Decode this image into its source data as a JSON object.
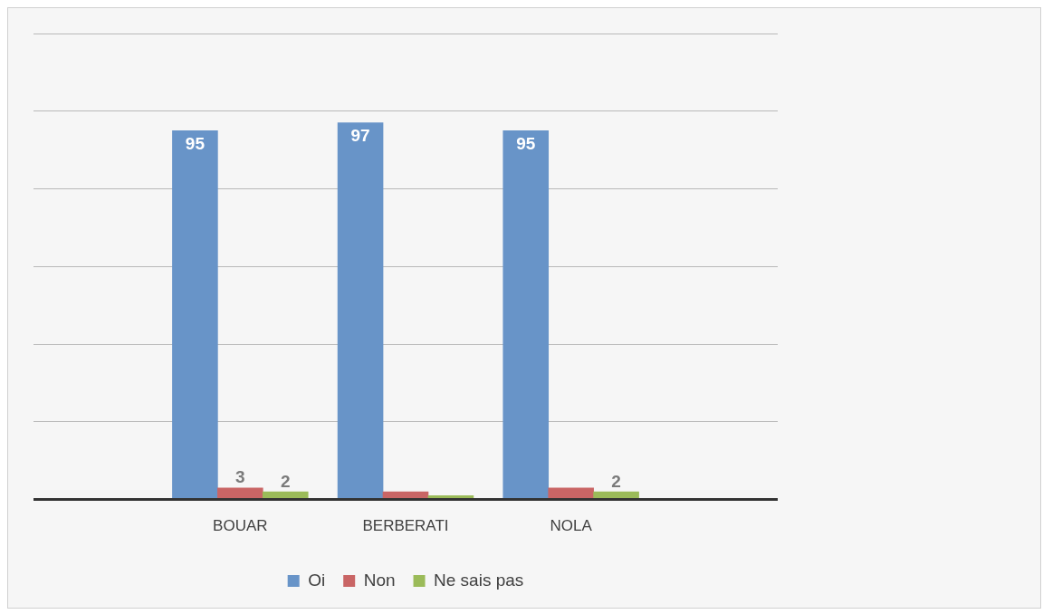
{
  "chart_data": {
    "type": "bar",
    "categories": [
      "BOUAR",
      "BERBERATI",
      "NOLA"
    ],
    "series": [
      {
        "name": "Oi",
        "color": "#6894c8",
        "values": [
          95,
          97,
          95
        ],
        "value_labels": [
          "95",
          "97",
          "95"
        ]
      },
      {
        "name": "Non",
        "color": "#c96565",
        "values": [
          3,
          2,
          3
        ],
        "value_labels": [
          "3",
          null,
          null
        ]
      },
      {
        "name": "Ne sais pas",
        "color": "#9bbb59",
        "values": [
          2,
          1,
          2
        ],
        "value_labels": [
          "2",
          null,
          "2"
        ]
      }
    ],
    "ylim": [
      0,
      120
    ],
    "yticks": [
      {
        "value": 0,
        "label": null
      },
      {
        "value": 20,
        "label": null
      },
      {
        "value": 40,
        "label": null
      },
      {
        "value": 60,
        "label": null
      },
      {
        "value": 80,
        "label": null
      },
      {
        "value": 100,
        "label": null
      },
      {
        "value": 120,
        "label": null
      }
    ],
    "tick_labels": "x",
    "grid": "y",
    "legend": "bottom"
  }
}
